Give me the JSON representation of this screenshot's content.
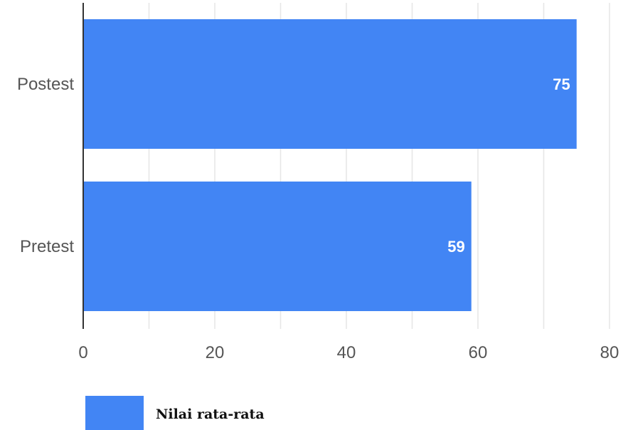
{
  "chart_data": {
    "type": "bar",
    "orientation": "horizontal",
    "categories": [
      "Postest",
      "Pretest"
    ],
    "series": [
      {
        "name": "Nilai rata-rata",
        "values": [
          75,
          59
        ],
        "color": "#4285F4"
      }
    ],
    "data_labels": [
      "75",
      "59"
    ],
    "xlim": [
      0,
      80
    ],
    "x_ticks": [
      "0",
      "20",
      "40",
      "60",
      "80"
    ],
    "gridlines": true,
    "minor_gridlines": true,
    "legend_position": "bottom-left",
    "title": "",
    "xlabel": "",
    "ylabel": ""
  },
  "colors": {
    "bar": "#4285F4",
    "grid": "#e6e6e6",
    "axis": "#333333",
    "tick_text": "#555555",
    "data_label_text": "#ffffff"
  }
}
